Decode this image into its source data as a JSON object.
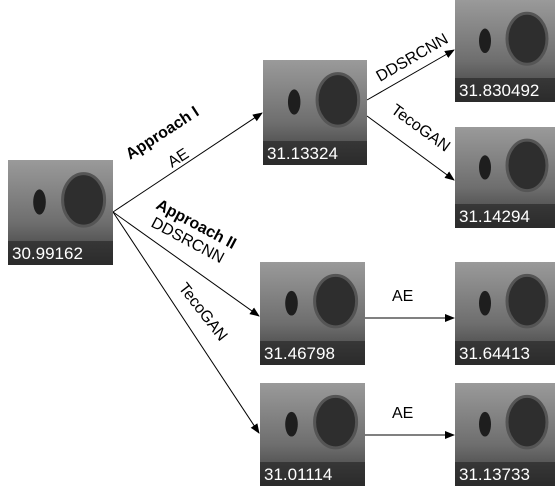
{
  "nodes": [
    {
      "value": "30.99162"
    },
    {
      "value": "31.13324"
    },
    {
      "value": "31.830492"
    },
    {
      "value": "31.14294"
    },
    {
      "value": "31.46798"
    },
    {
      "value": "31.64413"
    },
    {
      "value": "31.01114"
    },
    {
      "value": "31.13733"
    }
  ],
  "approaches": [
    "Approach I",
    "Approach II"
  ],
  "edges": [
    "AE",
    "DDSRCNN",
    "TecoGAN",
    "DDSRCNN",
    "TecoGAN",
    "AE",
    "AE"
  ]
}
